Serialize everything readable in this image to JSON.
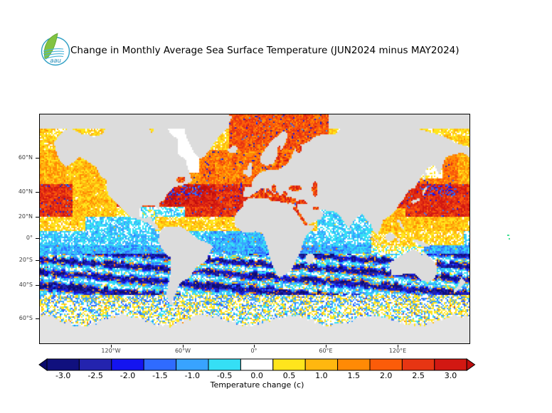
{
  "header": {
    "logo": {
      "text": "aau",
      "ring_color": "#2e9fc4",
      "leaf_color": "#82c341",
      "leaf_dark_color": "#5aa32e",
      "wave_color": "#4ab4d8",
      "text_color": "#1b87b5"
    },
    "title": "Change in Monthly Average Sea Surface Temperature (JUN2024 minus MAY2024)"
  },
  "map": {
    "lat_ticks": [
      "60°N",
      "40°N",
      "20°N",
      "0°",
      "20°S",
      "40°S",
      "60°S"
    ],
    "lon_ticks": [
      "120°W",
      "60°W",
      "0°",
      "60°E",
      "120°E"
    ],
    "land_color": "#dcdcdc",
    "antarctica_color": "#e4e4e4",
    "nodata_ocean_color": "#ffffff",
    "border_color": "#000000"
  },
  "colorbar": {
    "title": "Temperature change  (c)",
    "tick_labels": [
      "-3.0",
      "-2.5",
      "-2.0",
      "-1.5",
      "-1.0",
      "-0.5",
      "0.0",
      "0.5",
      "1.0",
      "1.5",
      "2.0",
      "2.5",
      "3.0"
    ],
    "colors": [
      "#10107e",
      "#2323ae",
      "#1414f0",
      "#2f6bff",
      "#38a3ff",
      "#35dff5",
      "#ffffff",
      "#ffe51c",
      "#ffb70f",
      "#ff8a05",
      "#fb5c09",
      "#e73513",
      "#d21812"
    ],
    "arrow_left_color": "#0a0a6e",
    "arrow_right_color": "#bf0d0d"
  },
  "chart_data": {
    "type": "heatmap",
    "title": "Change in Monthly Average Sea Surface Temperature (JUN2024 minus MAY2024)",
    "projection": "world map, Mercator-like, lon 180W-180E, lat ~75N-70S",
    "x_tick_labels": [
      "120°W",
      "60°W",
      "0°",
      "60°E",
      "120°E"
    ],
    "y_tick_labels": [
      "60°N",
      "40°N",
      "20°N",
      "0°",
      "20°S",
      "40°S",
      "60°S"
    ],
    "colorbar_label": "Temperature change  (c)",
    "colorbar_ticks": [
      -3.0,
      -2.5,
      -2.0,
      -1.5,
      -1.0,
      -0.5,
      0.0,
      0.5,
      1.0,
      1.5,
      2.0,
      2.5,
      3.0
    ],
    "units": "degrees C per month (JUN2024 minus MAY2024)",
    "legend_position": "bottom",
    "regions_summary": [
      {
        "region": "North Pacific 25N-50N",
        "change_c": "+1.5 to +3 (dark red cores)"
      },
      {
        "region": "Northeast Pacific near US west coast",
        "change_c": "0 to +1"
      },
      {
        "region": "North Atlantic 25N-50N",
        "change_c": "+2 to +3 with cool eddies"
      },
      {
        "region": "Norwegian / Barents / Baltic Seas",
        "change_c": "+1 to +3"
      },
      {
        "region": "Mediterranean, Black, Caspian Seas, Gulf of St Lawrence",
        "change_c": "+2 to +3"
      },
      {
        "region": "Tropics 10N-10S",
        "change_c": "-1 to +0.5 (cyan east Pacific, yellow west Pacific)"
      },
      {
        "region": "Southern subtropics 15S-45S",
        "change_c": "-0.5 to -3 in zonal bands with warm filaments"
      },
      {
        "region": "Southern Ocean 50S-60S",
        "change_c": "near 0, scattered -0.5 to -2"
      },
      {
        "region": "Labrador Sea, Sea of Okhotsk, below 60S",
        "change_c": "no data / near 0"
      }
    ]
  }
}
